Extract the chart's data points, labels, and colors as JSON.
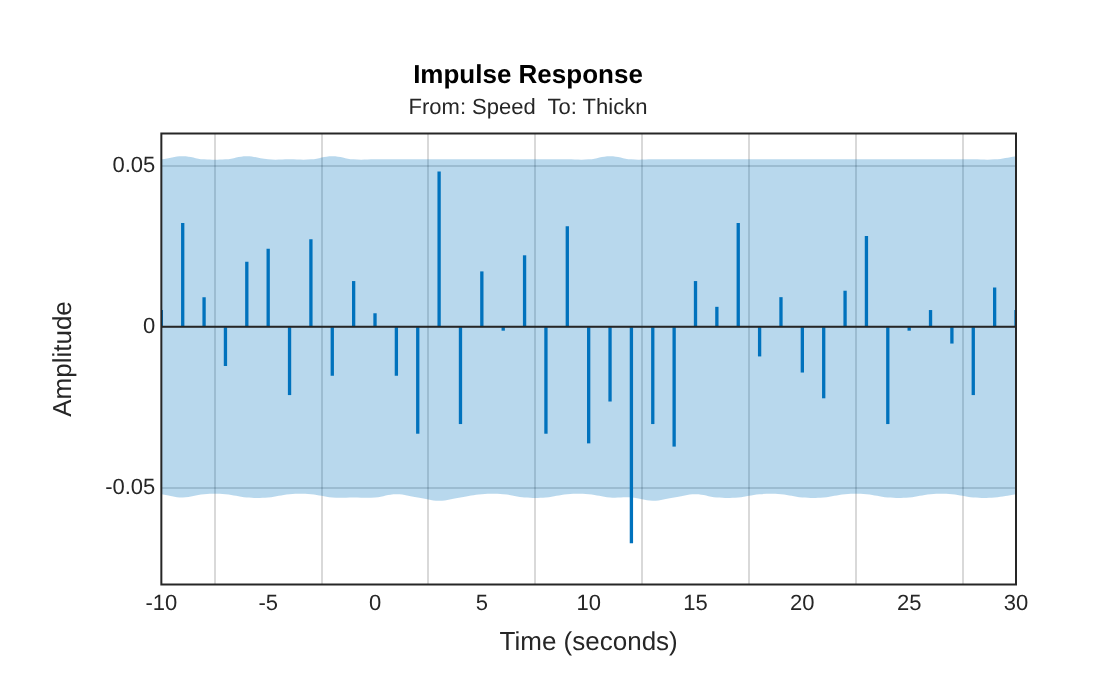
{
  "chart_data": {
    "type": "bar",
    "title": "Impulse Response",
    "subtitle": "From: Speed  To: Thickn",
    "xlabel": "Time (seconds)",
    "ylabel": "Amplitude",
    "x": [
      -10,
      -9,
      -8,
      -7,
      -6,
      -5,
      -4,
      -3,
      -2,
      -1,
      0,
      1,
      2,
      3,
      4,
      5,
      6,
      7,
      8,
      9,
      10,
      11,
      12,
      13,
      14,
      15,
      16,
      17,
      18,
      19,
      20,
      21,
      22,
      23,
      24,
      25,
      26,
      27,
      28,
      29,
      30
    ],
    "series": [
      {
        "color": "#0072bd",
        "values": [
          0.005,
          0.032,
          0.009,
          -0.012,
          0.02,
          0.024,
          -0.021,
          0.027,
          -0.015,
          0.014,
          0.004,
          -0.015,
          -0.033,
          0.048,
          -0.03,
          0.017,
          -0.001,
          0.022,
          -0.033,
          0.031,
          -0.036,
          -0.023,
          -0.067,
          -0.03,
          -0.037,
          0.014,
          0.006,
          0.032,
          -0.009,
          0.009,
          -0.014,
          -0.022,
          0.011,
          0.028,
          -0.03,
          -0.001,
          0.005,
          -0.005,
          -0.021,
          0.012,
          0.005
        ]
      },
      {
        "type": "line",
        "color": "#262626",
        "values": [
          0,
          0,
          0,
          0,
          0,
          0,
          0,
          0,
          0,
          0,
          0,
          0,
          0,
          0,
          0,
          0,
          0,
          0,
          0,
          0,
          0,
          0,
          0,
          0,
          0,
          0,
          0,
          0,
          0,
          0,
          0,
          0,
          0,
          0,
          0,
          0,
          0,
          0,
          0,
          0,
          0
        ],
        "upper": [
          0.052,
          0.053,
          0.052,
          0.052,
          0.053,
          0.052,
          0.052,
          0.052,
          0.053,
          0.052,
          0.052,
          0.052,
          0.052,
          0.052,
          0.052,
          0.052,
          0.052,
          0.052,
          0.052,
          0.052,
          0.052,
          0.053,
          0.052,
          0.052,
          0.052,
          0.052,
          0.052,
          0.052,
          0.052,
          0.052,
          0.052,
          0.052,
          0.052,
          0.052,
          0.052,
          0.052,
          0.052,
          0.052,
          0.052,
          0.052,
          0.053
        ],
        "lower": [
          -0.052,
          -0.053,
          -0.052,
          -0.052,
          -0.053,
          -0.053,
          -0.052,
          -0.052,
          -0.053,
          -0.053,
          -0.053,
          -0.052,
          -0.053,
          -0.054,
          -0.053,
          -0.052,
          -0.052,
          -0.053,
          -0.053,
          -0.052,
          -0.052,
          -0.053,
          -0.053,
          -0.054,
          -0.053,
          -0.052,
          -0.053,
          -0.053,
          -0.052,
          -0.052,
          -0.053,
          -0.053,
          -0.052,
          -0.052,
          -0.053,
          -0.053,
          -0.052,
          -0.052,
          -0.053,
          -0.053,
          -0.052
        ]
      }
    ],
    "xlim": [
      -10,
      30
    ],
    "xticks": [
      -10,
      -5,
      0,
      5,
      10,
      15,
      20,
      25,
      30
    ],
    "ylim": [
      -0.08,
      0.06
    ],
    "yticks": [
      -0.05,
      0,
      0.05
    ],
    "grid": true,
    "legend": false
  }
}
